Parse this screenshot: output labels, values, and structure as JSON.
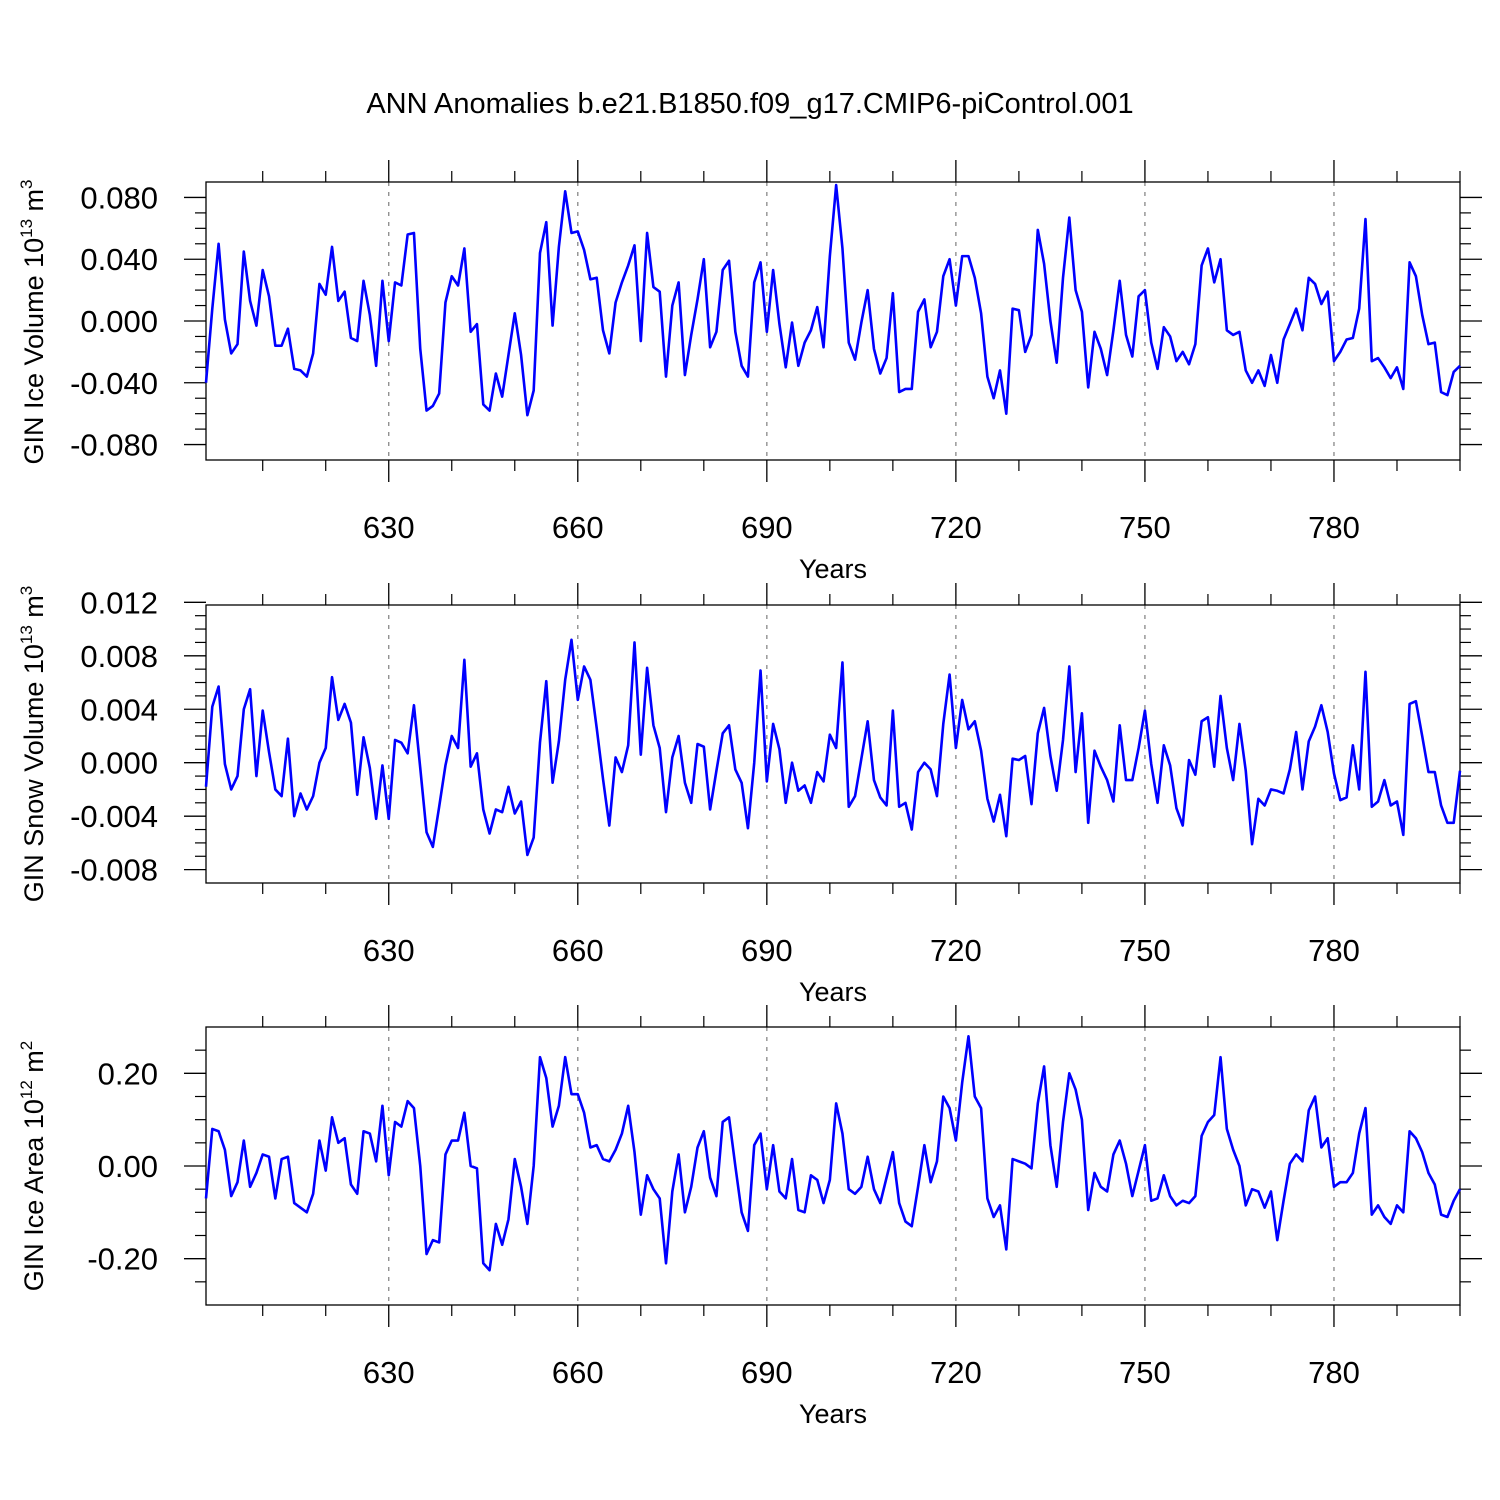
{
  "title": "ANN Anomalies b.e21.B1850.f09_g17.CMIP6-piControl.001",
  "colors": {
    "line": "#0000ff",
    "axis": "#000000",
    "gridline": "#888888"
  },
  "chart_data": [
    {
      "type": "line",
      "xlabel": "Years",
      "ylabel": {
        "text": "GIN Ice Volume 10",
        "exp": "13",
        "unit": " m",
        "unit_exp": "3"
      },
      "xlim": [
        601,
        800
      ],
      "ylim": [
        -0.09,
        0.09
      ],
      "xticks": [
        "630",
        "660",
        "690",
        "720",
        "750",
        "780"
      ],
      "yticks": [
        "0.080",
        "0.040",
        "0.000",
        "-0.040",
        "-0.080"
      ],
      "x_start": 601,
      "series": [
        {
          "values": [
            -0.04,
            0.008,
            0.05,
            0.001,
            -0.021,
            -0.015,
            0.045,
            0.013,
            -0.003,
            0.033,
            0.016,
            -0.016,
            -0.016,
            -0.005,
            -0.031,
            -0.032,
            -0.036,
            -0.021,
            0.024,
            0.017,
            0.048,
            0.013,
            0.019,
            -0.011,
            -0.013,
            0.026,
            0.004,
            -0.029,
            0.026,
            -0.013,
            0.025,
            0.023,
            0.056,
            0.057,
            -0.018,
            -0.058,
            -0.055,
            -0.047,
            0.012,
            0.029,
            0.023,
            0.047,
            -0.007,
            -0.002,
            -0.054,
            -0.058,
            -0.034,
            -0.049,
            -0.022,
            0.005,
            -0.022,
            -0.061,
            -0.045,
            0.044,
            0.064,
            -0.003,
            0.048,
            0.084,
            0.057,
            0.058,
            0.046,
            0.027,
            0.028,
            -0.006,
            -0.021,
            0.012,
            0.025,
            0.036,
            0.049,
            -0.013,
            0.057,
            0.022,
            0.019,
            -0.036,
            0.01,
            0.025,
            -0.035,
            -0.009,
            0.014,
            0.04,
            -0.017,
            -0.007,
            0.033,
            0.039,
            -0.007,
            -0.029,
            -0.036,
            0.025,
            0.038,
            -0.007,
            0.033,
            -0.002,
            -0.03,
            -0.001,
            -0.029,
            -0.014,
            -0.006,
            0.009,
            -0.017,
            0.042,
            0.088,
            0.047,
            -0.014,
            -0.025,
            -0.001,
            0.02,
            -0.018,
            -0.034,
            -0.024,
            0.018,
            -0.046,
            -0.044,
            -0.044,
            0.006,
            0.014,
            -0.017,
            -0.007,
            0.029,
            0.04,
            0.01,
            0.042,
            0.042,
            0.028,
            0.005,
            -0.036,
            -0.05,
            -0.032,
            -0.06,
            0.008,
            0.007,
            -0.02,
            -0.009,
            0.059,
            0.037,
            0.0,
            -0.027,
            0.028,
            0.067,
            0.02,
            0.006,
            -0.043,
            -0.007,
            -0.018,
            -0.035,
            -0.006,
            0.026,
            -0.009,
            -0.023,
            0.016,
            0.02,
            -0.014,
            -0.031,
            -0.004,
            -0.01,
            -0.026,
            -0.02,
            -0.028,
            -0.015,
            0.036,
            0.047,
            0.025,
            0.04,
            -0.006,
            -0.009,
            -0.007,
            -0.032,
            -0.04,
            -0.032,
            -0.042,
            -0.022,
            -0.04,
            -0.012,
            -0.002,
            0.008,
            -0.006,
            0.028,
            0.024,
            0.011,
            0.019,
            -0.026,
            -0.02,
            -0.012,
            -0.011,
            0.008,
            0.066,
            -0.026,
            -0.024,
            -0.03,
            -0.037,
            -0.03,
            -0.044,
            0.038,
            0.029,
            0.004,
            -0.015,
            -0.014,
            -0.046,
            -0.048,
            -0.033,
            -0.029
          ]
        }
      ]
    },
    {
      "type": "line",
      "xlabel": "Years",
      "ylabel": {
        "text": "GIN Snow Volume 10",
        "exp": "13",
        "unit": " m",
        "unit_exp": "3"
      },
      "xlim": [
        601,
        800
      ],
      "ylim": [
        -0.009,
        0.0118
      ],
      "xticks": [
        "630",
        "660",
        "690",
        "720",
        "750",
        "780"
      ],
      "yticks": [
        "0.012",
        "0.008",
        "0.004",
        "0.000",
        "-0.004",
        "-0.008"
      ],
      "x_start": 601,
      "series": [
        {
          "values": [
            -0.0018,
            0.0042,
            0.0057,
            -0.0001,
            -0.002,
            -0.001,
            0.004,
            0.0055,
            -0.001,
            0.0039,
            0.0008,
            -0.002,
            -0.0025,
            0.0018,
            -0.004,
            -0.0023,
            -0.0035,
            -0.0025,
            0.0,
            0.0011,
            0.0064,
            0.0032,
            0.0044,
            0.003,
            -0.0024,
            0.0019,
            -0.0004,
            -0.0042,
            -0.0002,
            -0.0042,
            0.0017,
            0.0015,
            0.0007,
            0.0043,
            -0.0004,
            -0.0052,
            -0.0063,
            -0.0033,
            -0.0002,
            0.002,
            0.0011,
            0.0077,
            -0.0003,
            0.0007,
            -0.0035,
            -0.0053,
            -0.0035,
            -0.0037,
            -0.0018,
            -0.0038,
            -0.0029,
            -0.0069,
            -0.0056,
            0.0015,
            0.0061,
            -0.0015,
            0.0016,
            0.0062,
            0.0092,
            0.0047,
            0.0072,
            0.0062,
            0.0026,
            -0.0012,
            -0.0047,
            0.0004,
            -0.0007,
            0.0013,
            0.009,
            0.0006,
            0.0071,
            0.0028,
            0.0011,
            -0.0037,
            0.0004,
            0.002,
            -0.0015,
            -0.003,
            0.0014,
            0.0012,
            -0.0035,
            -0.0006,
            0.0022,
            0.0028,
            -0.0005,
            -0.0015,
            -0.0049,
            0.0,
            0.0069,
            -0.0014,
            0.0029,
            0.001,
            -0.003,
            0.0,
            -0.0021,
            -0.0017,
            -0.003,
            -0.0007,
            -0.0014,
            0.0021,
            0.0011,
            0.0075,
            -0.0033,
            -0.0025,
            0.0003,
            0.0031,
            -0.0013,
            -0.0026,
            -0.0032,
            0.0039,
            -0.0033,
            -0.003,
            -0.005,
            -0.0007,
            0.0,
            -0.0005,
            -0.0025,
            0.0029,
            0.0066,
            0.0011,
            0.0047,
            0.0025,
            0.0031,
            0.0009,
            -0.0027,
            -0.0044,
            -0.0024,
            -0.0055,
            0.0003,
            0.0002,
            0.0005,
            -0.0031,
            0.0022,
            0.0041,
            0.0005,
            -0.0021,
            0.0017,
            0.0072,
            -0.0007,
            0.0037,
            -0.0045,
            0.0009,
            -0.0003,
            -0.0013,
            -0.0029,
            0.0028,
            -0.0013,
            -0.0013,
            0.0011,
            0.0039,
            -0.0001,
            -0.003,
            0.0013,
            -0.0002,
            -0.0034,
            -0.0047,
            0.0002,
            -0.0009,
            0.0031,
            0.0034,
            -0.0003,
            0.005,
            0.0011,
            -0.0013,
            0.0029,
            -0.0006,
            -0.0061,
            -0.0027,
            -0.0032,
            -0.002,
            -0.0021,
            -0.0023,
            -0.0005,
            0.0023,
            -0.002,
            0.0016,
            0.0027,
            0.0043,
            0.0023,
            -0.0008,
            -0.0028,
            -0.0026,
            0.0013,
            -0.002,
            0.0068,
            -0.0033,
            -0.0029,
            -0.0013,
            -0.0032,
            -0.0029,
            -0.0054,
            0.0044,
            0.0046,
            0.002,
            -0.0007,
            -0.0007,
            -0.0032,
            -0.0045,
            -0.0045,
            -0.0006
          ]
        }
      ]
    },
    {
      "type": "line",
      "xlabel": "Years",
      "ylabel": {
        "text": "GIN Ice Area 10",
        "exp": "12",
        "unit": " m",
        "unit_exp": "2"
      },
      "xlim": [
        601,
        800
      ],
      "ylim": [
        -0.3,
        0.3
      ],
      "xticks": [
        "630",
        "660",
        "690",
        "720",
        "750",
        "780"
      ],
      "yticks": [
        "0.20",
        "0.00",
        "-0.20"
      ],
      "x_start": 601,
      "series": [
        {
          "values": [
            -0.07,
            0.08,
            0.075,
            0.035,
            -0.065,
            -0.035,
            0.055,
            -0.045,
            -0.015,
            0.025,
            0.02,
            -0.07,
            0.015,
            0.02,
            -0.08,
            -0.09,
            -0.1,
            -0.06,
            0.055,
            -0.01,
            0.105,
            0.05,
            0.06,
            -0.04,
            -0.06,
            0.075,
            0.07,
            0.01,
            0.13,
            -0.02,
            0.095,
            0.085,
            0.14,
            0.125,
            0.0,
            -0.19,
            -0.16,
            -0.165,
            0.025,
            0.055,
            0.055,
            0.115,
            0.0,
            -0.005,
            -0.21,
            -0.225,
            -0.125,
            -0.17,
            -0.115,
            0.015,
            -0.045,
            -0.125,
            0.0,
            0.235,
            0.19,
            0.085,
            0.13,
            0.235,
            0.155,
            0.155,
            0.115,
            0.04,
            0.045,
            0.015,
            0.01,
            0.035,
            0.07,
            0.13,
            0.03,
            -0.105,
            -0.02,
            -0.05,
            -0.07,
            -0.21,
            -0.055,
            0.025,
            -0.1,
            -0.045,
            0.04,
            0.075,
            -0.025,
            -0.065,
            0.095,
            0.105,
            0.0,
            -0.1,
            -0.14,
            0.045,
            0.07,
            -0.05,
            0.045,
            -0.055,
            -0.07,
            0.015,
            -0.095,
            -0.1,
            -0.02,
            -0.03,
            -0.08,
            -0.03,
            0.135,
            0.07,
            -0.05,
            -0.06,
            -0.045,
            0.02,
            -0.05,
            -0.08,
            -0.025,
            0.03,
            -0.08,
            -0.12,
            -0.13,
            -0.045,
            0.045,
            -0.035,
            0.01,
            0.15,
            0.125,
            0.055,
            0.18,
            0.28,
            0.15,
            0.125,
            -0.07,
            -0.11,
            -0.085,
            -0.18,
            0.015,
            0.01,
            0.005,
            -0.005,
            0.135,
            0.215,
            0.045,
            -0.045,
            0.095,
            0.2,
            0.165,
            0.1,
            -0.095,
            -0.015,
            -0.045,
            -0.055,
            0.025,
            0.055,
            0.005,
            -0.065,
            -0.01,
            0.045,
            -0.075,
            -0.07,
            -0.02,
            -0.065,
            -0.085,
            -0.075,
            -0.08,
            -0.065,
            0.065,
            0.095,
            0.11,
            0.235,
            0.08,
            0.035,
            0.0,
            -0.085,
            -0.05,
            -0.055,
            -0.09,
            -0.055,
            -0.16,
            -0.075,
            0.005,
            0.025,
            0.01,
            0.12,
            0.15,
            0.04,
            0.06,
            -0.045,
            -0.035,
            -0.035,
            -0.015,
            0.07,
            0.125,
            -0.105,
            -0.085,
            -0.11,
            -0.125,
            -0.085,
            -0.1,
            0.075,
            0.06,
            0.03,
            -0.015,
            -0.04,
            -0.105,
            -0.11,
            -0.075,
            -0.05
          ]
        }
      ]
    }
  ]
}
